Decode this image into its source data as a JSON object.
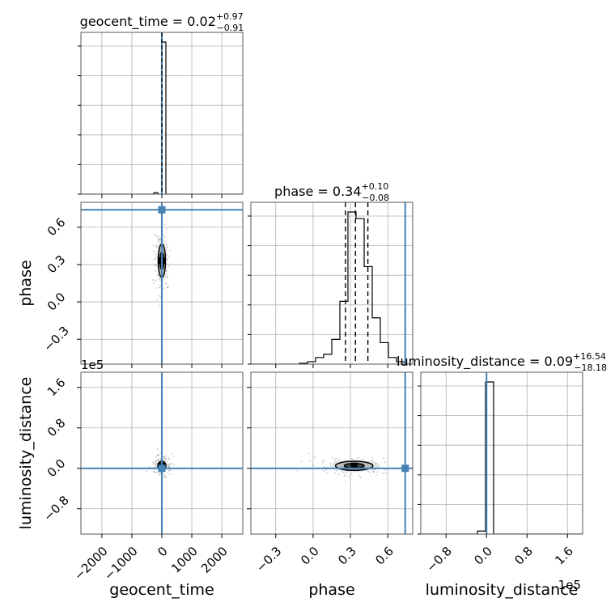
{
  "chart_data": {
    "type": "corner",
    "parameters": [
      "geocent_time",
      "phase",
      "luminosity_distance"
    ],
    "xlabels": [
      "geocent_time",
      "phase",
      "luminosity_distance"
    ],
    "ylabels": [
      "",
      "phase",
      "luminosity_distance"
    ],
    "titles": [
      {
        "param": "geocent_time",
        "prefix": "geocent_time = ",
        "median": "0.02",
        "upper": "+0.97",
        "lower": "−0.91"
      },
      {
        "param": "phase",
        "prefix": "phase = ",
        "median": "0.34",
        "upper": "+0.10",
        "lower": "−0.08"
      },
      {
        "param": "luminosity_distance",
        "prefix": "luminosity_distance = ",
        "median": "0.09",
        "upper": "+16.54",
        "lower": "−18.18"
      }
    ],
    "ranges": {
      "geocent_time": [
        -2700,
        2700
      ],
      "phase": [
        -0.5,
        0.8
      ],
      "luminosity_distance": [
        -130000,
        190000
      ]
    },
    "ticks": {
      "geocent_time": {
        "values": [
          -2000,
          -1000,
          0,
          1000,
          2000
        ],
        "labels": [
          "−2000",
          "−1000",
          "0",
          "1000",
          "2000"
        ]
      },
      "phase": {
        "values": [
          -0.3,
          0.0,
          0.3,
          0.6
        ],
        "labels": [
          "−0.3",
          "0.0",
          "0.3",
          "0.6"
        ]
      },
      "luminosity_distance": {
        "values": [
          -80000,
          0,
          80000,
          160000
        ],
        "labels": [
          "−0.8",
          "0.0",
          "0.8",
          "1.6"
        ]
      }
    },
    "offset_text": "1e5",
    "truths": {
      "geocent_time": 0,
      "phase": 0.74,
      "luminosity_distance": 0
    },
    "quantiles": {
      "phase": [
        0.26,
        0.34,
        0.44
      ]
    },
    "histograms": {
      "geocent_time": {
        "edges": [
          -2700,
          -2430,
          -2160,
          -1890,
          -1620,
          -1350,
          -1080,
          -810,
          -540,
          -270,
          -135,
          0,
          135,
          270,
          540,
          810,
          1080,
          1350,
          1620,
          1890,
          2160,
          2430,
          2700
        ],
        "counts": [
          0,
          0,
          0,
          0,
          0,
          0,
          0,
          0,
          0,
          0.01,
          0,
          1.0,
          0,
          0,
          0,
          0,
          0,
          0,
          0,
          0,
          0,
          0
        ]
      },
      "phase": {
        "edges": [
          -0.5,
          -0.435,
          -0.37,
          -0.305,
          -0.24,
          -0.175,
          -0.11,
          -0.045,
          0.02,
          0.085,
          0.15,
          0.215,
          0.28,
          0.345,
          0.41,
          0.475,
          0.54,
          0.605,
          0.67,
          0.735,
          0.8
        ],
        "counts": [
          0,
          0,
          0,
          0,
          0,
          0,
          0.005,
          0.015,
          0.04,
          0.06,
          0.15,
          0.38,
          0.92,
          0.88,
          0.59,
          0.28,
          0.13,
          0.04,
          0.015,
          0,
          0
        ]
      },
      "luminosity_distance": {
        "edges": [
          -130000,
          -114000,
          -98000,
          -82000,
          -66000,
          -50000,
          -34000,
          -18000,
          -2000,
          14000,
          30000,
          46000,
          62000,
          78000,
          94000,
          110000,
          126000,
          142000,
          158000,
          174000,
          190000
        ],
        "counts": [
          0,
          0,
          0,
          0,
          0,
          0,
          0,
          0.02,
          1.0,
          0,
          0,
          0,
          0,
          0,
          0,
          0,
          0,
          0,
          0,
          0
        ]
      }
    },
    "hist2d": {
      "phase_vs_geocent_time": {
        "x_center": 0,
        "y_center": 0.33,
        "x_sigma": 70,
        "y_sigma": 0.09
      },
      "luminosity_distance_vs_geocent_time": {
        "x_center": 0,
        "y_center": 5000,
        "x_sigma": 90,
        "y_sigma": 6000
      },
      "luminosity_distance_vs_phase": {
        "x_center": 0.33,
        "y_center": 5000,
        "x_sigma": 0.1,
        "y_sigma": 6000
      }
    },
    "colors": {
      "truth": "#4682b4",
      "hist": "#000000",
      "grid": "#b0b0b0",
      "scatter": "#999999",
      "contour_fill": "#bdbdbd"
    },
    "grid": true
  }
}
